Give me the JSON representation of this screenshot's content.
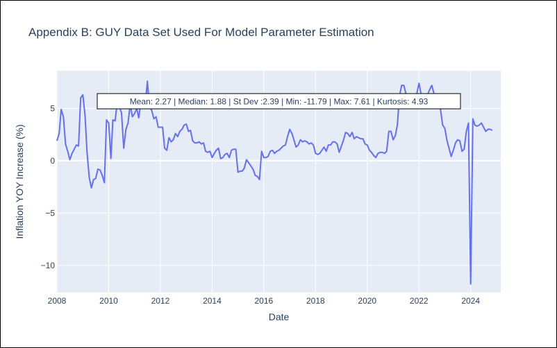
{
  "chart_data": {
    "type": "line",
    "title": "Appendix B: GUY Data Set Used For Model Parameter Estimation",
    "xlabel": "Date",
    "ylabel": "Inflation YOY Increase (%)",
    "xlim": [
      "2008-01-01",
      "2025-03-01"
    ],
    "ylim": [
      -12.6,
      8.6
    ],
    "x_ticks": [
      "2008",
      "2010",
      "2012",
      "2014",
      "2016",
      "2018",
      "2020",
      "2022",
      "2024"
    ],
    "y_ticks": [
      5,
      0,
      -5,
      -10
    ],
    "grid": true,
    "legend": "none",
    "annotation": "Mean: 2.27 | Median: 1.88 | St Dev :2.39 | Min: -11.79 | Max: 7.61 | Kurtosis: 4.93",
    "series": [
      {
        "color": "#636efa",
        "points": [
          [
            "2008-01",
            1.9
          ],
          [
            "2008-02",
            2.6
          ],
          [
            "2008-03",
            4.9
          ],
          [
            "2008-04",
            4.2
          ],
          [
            "2008-05",
            1.6
          ],
          [
            "2008-06",
            0.9
          ],
          [
            "2008-07",
            0.1
          ],
          [
            "2008-08",
            0.7
          ],
          [
            "2008-09",
            1.1
          ],
          [
            "2008-10",
            1.5
          ],
          [
            "2008-11",
            1.4
          ],
          [
            "2008-12",
            6.0
          ],
          [
            "2009-01",
            6.3
          ],
          [
            "2009-02",
            4.3
          ],
          [
            "2009-03",
            0.8
          ],
          [
            "2009-04",
            -1.6
          ],
          [
            "2009-05",
            -2.6
          ],
          [
            "2009-06",
            -1.8
          ],
          [
            "2009-07",
            -1.7
          ],
          [
            "2009-08",
            -0.8
          ],
          [
            "2009-09",
            -0.9
          ],
          [
            "2009-10",
            -1.4
          ],
          [
            "2009-11",
            -2.1
          ],
          [
            "2009-12",
            3.9
          ],
          [
            "2010-01",
            3.6
          ],
          [
            "2010-02",
            0.2
          ],
          [
            "2010-03",
            3.9
          ],
          [
            "2010-04",
            3.8
          ],
          [
            "2010-05",
            5.5
          ],
          [
            "2010-06",
            5.1
          ],
          [
            "2010-07",
            4.6
          ],
          [
            "2010-08",
            1.2
          ],
          [
            "2010-09",
            3.0
          ],
          [
            "2010-10",
            3.6
          ],
          [
            "2010-11",
            5.4
          ],
          [
            "2010-12",
            4.2
          ],
          [
            "2011-01",
            4.5
          ],
          [
            "2011-02",
            5.0
          ],
          [
            "2011-03",
            4.1
          ],
          [
            "2011-04",
            5.6
          ],
          [
            "2011-05",
            5.0
          ],
          [
            "2011-06",
            5.2
          ],
          [
            "2011-07",
            7.6
          ],
          [
            "2011-08",
            5.1
          ],
          [
            "2011-09",
            4.8
          ],
          [
            "2011-10",
            4.0
          ],
          [
            "2011-11",
            4.2
          ],
          [
            "2011-12",
            3.2
          ],
          [
            "2012-01",
            3.2
          ],
          [
            "2012-02",
            3.2
          ],
          [
            "2012-03",
            1.2
          ],
          [
            "2012-04",
            1.0
          ],
          [
            "2012-05",
            2.2
          ],
          [
            "2012-06",
            1.8
          ],
          [
            "2012-07",
            2.0
          ],
          [
            "2012-08",
            2.6
          ],
          [
            "2012-09",
            2.3
          ],
          [
            "2012-10",
            2.8
          ],
          [
            "2012-11",
            3.0
          ],
          [
            "2012-12",
            3.4
          ],
          [
            "2013-01",
            3.5
          ],
          [
            "2013-02",
            2.8
          ],
          [
            "2013-03",
            2.9
          ],
          [
            "2013-04",
            1.9
          ],
          [
            "2013-05",
            1.7
          ],
          [
            "2013-06",
            1.7
          ],
          [
            "2013-07",
            1.8
          ],
          [
            "2013-08",
            1.6
          ],
          [
            "2013-09",
            1.7
          ],
          [
            "2013-10",
            0.9
          ],
          [
            "2013-11",
            0.8
          ],
          [
            "2013-12",
            0.9
          ],
          [
            "2014-01",
            0.3
          ],
          [
            "2014-02",
            0.7
          ],
          [
            "2014-03",
            1.0
          ],
          [
            "2014-04",
            1.2
          ],
          [
            "2014-05",
            0.2
          ],
          [
            "2014-06",
            0.3
          ],
          [
            "2014-07",
            0.6
          ],
          [
            "2014-08",
            0.7
          ],
          [
            "2014-09",
            0.3
          ],
          [
            "2014-10",
            1.0
          ],
          [
            "2014-11",
            1.1
          ],
          [
            "2014-12",
            1.1
          ],
          [
            "2015-01",
            -1.1
          ],
          [
            "2015-02",
            -1.0
          ],
          [
            "2015-03",
            -1.0
          ],
          [
            "2015-04",
            -0.7
          ],
          [
            "2015-05",
            0.1
          ],
          [
            "2015-06",
            -0.2
          ],
          [
            "2015-07",
            -0.5
          ],
          [
            "2015-08",
            -0.8
          ],
          [
            "2015-09",
            -1.4
          ],
          [
            "2015-10",
            -1.5
          ],
          [
            "2015-11",
            -1.8
          ],
          [
            "2015-12",
            0.9
          ],
          [
            "2016-01",
            0.3
          ],
          [
            "2016-02",
            0.3
          ],
          [
            "2016-03",
            0.4
          ],
          [
            "2016-04",
            0.9
          ],
          [
            "2016-05",
            1.0
          ],
          [
            "2016-06",
            0.7
          ],
          [
            "2016-07",
            0.9
          ],
          [
            "2016-08",
            1.0
          ],
          [
            "2016-09",
            1.2
          ],
          [
            "2016-10",
            1.4
          ],
          [
            "2016-11",
            1.5
          ],
          [
            "2016-12",
            2.3
          ],
          [
            "2017-01",
            3.0
          ],
          [
            "2017-02",
            2.6
          ],
          [
            "2017-03",
            2.0
          ],
          [
            "2017-04",
            1.3
          ],
          [
            "2017-05",
            1.5
          ],
          [
            "2017-06",
            2.0
          ],
          [
            "2017-07",
            1.8
          ],
          [
            "2017-08",
            1.9
          ],
          [
            "2017-09",
            1.8
          ],
          [
            "2017-10",
            1.6
          ],
          [
            "2017-11",
            1.7
          ],
          [
            "2017-12",
            1.5
          ],
          [
            "2018-01",
            0.7
          ],
          [
            "2018-02",
            0.6
          ],
          [
            "2018-03",
            0.7
          ],
          [
            "2018-04",
            1.0
          ],
          [
            "2018-05",
            1.3
          ],
          [
            "2018-06",
            0.9
          ],
          [
            "2018-07",
            1.5
          ],
          [
            "2018-08",
            1.5
          ],
          [
            "2018-09",
            1.8
          ],
          [
            "2018-10",
            1.8
          ],
          [
            "2018-11",
            1.6
          ],
          [
            "2018-12",
            0.8
          ],
          [
            "2019-01",
            1.4
          ],
          [
            "2019-02",
            2.0
          ],
          [
            "2019-03",
            2.7
          ],
          [
            "2019-04",
            2.6
          ],
          [
            "2019-05",
            2.3
          ],
          [
            "2019-06",
            2.7
          ],
          [
            "2019-07",
            2.1
          ],
          [
            "2019-08",
            2.3
          ],
          [
            "2019-09",
            2.2
          ],
          [
            "2019-10",
            2.1
          ],
          [
            "2019-11",
            2.1
          ],
          [
            "2019-12",
            1.6
          ],
          [
            "2020-01",
            1.5
          ],
          [
            "2020-02",
            1.0
          ],
          [
            "2020-03",
            0.8
          ],
          [
            "2020-04",
            0.5
          ],
          [
            "2020-05",
            0.3
          ],
          [
            "2020-06",
            0.7
          ],
          [
            "2020-07",
            0.8
          ],
          [
            "2020-08",
            0.8
          ],
          [
            "2020-09",
            0.7
          ],
          [
            "2020-10",
            0.9
          ],
          [
            "2020-11",
            2.8
          ],
          [
            "2020-12",
            2.8
          ],
          [
            "2021-01",
            2.0
          ],
          [
            "2021-02",
            2.4
          ],
          [
            "2021-03",
            3.4
          ],
          [
            "2021-04",
            6.2
          ],
          [
            "2021-05",
            7.2
          ],
          [
            "2021-06",
            7.2
          ],
          [
            "2021-07",
            6.4
          ],
          [
            "2021-08",
            5.5
          ],
          [
            "2021-09",
            5.6
          ],
          [
            "2021-10",
            5.5
          ],
          [
            "2021-11",
            5.8
          ],
          [
            "2021-12",
            6.4
          ],
          [
            "2022-01",
            7.4
          ],
          [
            "2022-02",
            6.3
          ],
          [
            "2022-03",
            5.6
          ],
          [
            "2022-04",
            5.6
          ],
          [
            "2022-05",
            6.3
          ],
          [
            "2022-06",
            6.8
          ],
          [
            "2022-07",
            7.2
          ],
          [
            "2022-08",
            6.4
          ],
          [
            "2022-09",
            6.1
          ],
          [
            "2022-10",
            5.3
          ],
          [
            "2022-11",
            4.9
          ],
          [
            "2022-12",
            3.4
          ],
          [
            "2023-01",
            3.1
          ],
          [
            "2023-02",
            1.9
          ],
          [
            "2023-03",
            1.2
          ],
          [
            "2023-04",
            0.4
          ],
          [
            "2023-05",
            1.0
          ],
          [
            "2023-06",
            1.7
          ],
          [
            "2023-07",
            2.0
          ],
          [
            "2023-08",
            1.9
          ],
          [
            "2023-09",
            0.9
          ],
          [
            "2023-10",
            1.1
          ],
          [
            "2023-11",
            2.8
          ],
          [
            "2023-12",
            3.6
          ],
          [
            "2024-01",
            -11.79
          ],
          [
            "2024-02",
            4.0
          ],
          [
            "2024-03",
            3.4
          ],
          [
            "2024-04",
            3.3
          ],
          [
            "2024-05",
            3.4
          ],
          [
            "2024-06",
            3.6
          ],
          [
            "2024-07",
            3.2
          ],
          [
            "2024-08",
            2.8
          ],
          [
            "2024-09",
            3.0
          ],
          [
            "2024-10",
            3.0
          ],
          [
            "2024-11",
            2.9
          ]
        ]
      }
    ]
  }
}
